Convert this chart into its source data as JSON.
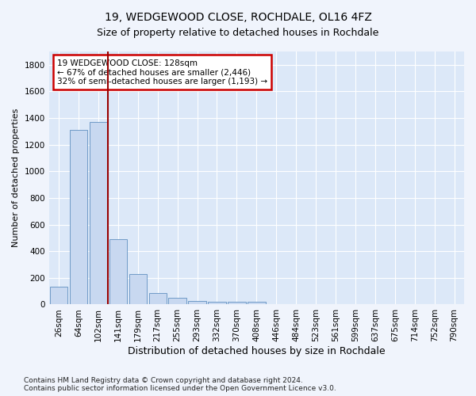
{
  "title": "19, WEDGEWOOD CLOSE, ROCHDALE, OL16 4FZ",
  "subtitle": "Size of property relative to detached houses in Rochdale",
  "xlabel": "Distribution of detached houses by size in Rochdale",
  "ylabel": "Number of detached properties",
  "categories": [
    "26sqm",
    "64sqm",
    "102sqm",
    "141sqm",
    "179sqm",
    "217sqm",
    "255sqm",
    "293sqm",
    "332sqm",
    "370sqm",
    "408sqm",
    "446sqm",
    "484sqm",
    "523sqm",
    "561sqm",
    "599sqm",
    "637sqm",
    "675sqm",
    "714sqm",
    "752sqm",
    "790sqm"
  ],
  "values": [
    135,
    1310,
    1370,
    490,
    230,
    85,
    50,
    25,
    20,
    20,
    20,
    0,
    0,
    0,
    0,
    0,
    0,
    0,
    0,
    0,
    0
  ],
  "bar_color": "#c8d8f0",
  "bar_edge_color": "#6090c0",
  "vline_x_idx": 2,
  "vline_color": "#990000",
  "annotation_text": "19 WEDGEWOOD CLOSE: 128sqm\n← 67% of detached houses are smaller (2,446)\n32% of semi-detached houses are larger (1,193) →",
  "annotation_box_color": "white",
  "annotation_box_edgecolor": "#cc0000",
  "footer": "Contains HM Land Registry data © Crown copyright and database right 2024.\nContains public sector information licensed under the Open Government Licence v3.0.",
  "ylim": [
    0,
    1900
  ],
  "bg_color": "#f0f4fc",
  "plot_bg_color": "#dce8f8",
  "grid_color": "#ffffff",
  "title_fontsize": 10,
  "ylabel_fontsize": 8,
  "xlabel_fontsize": 9,
  "tick_fontsize": 7.5,
  "footer_fontsize": 6.5
}
